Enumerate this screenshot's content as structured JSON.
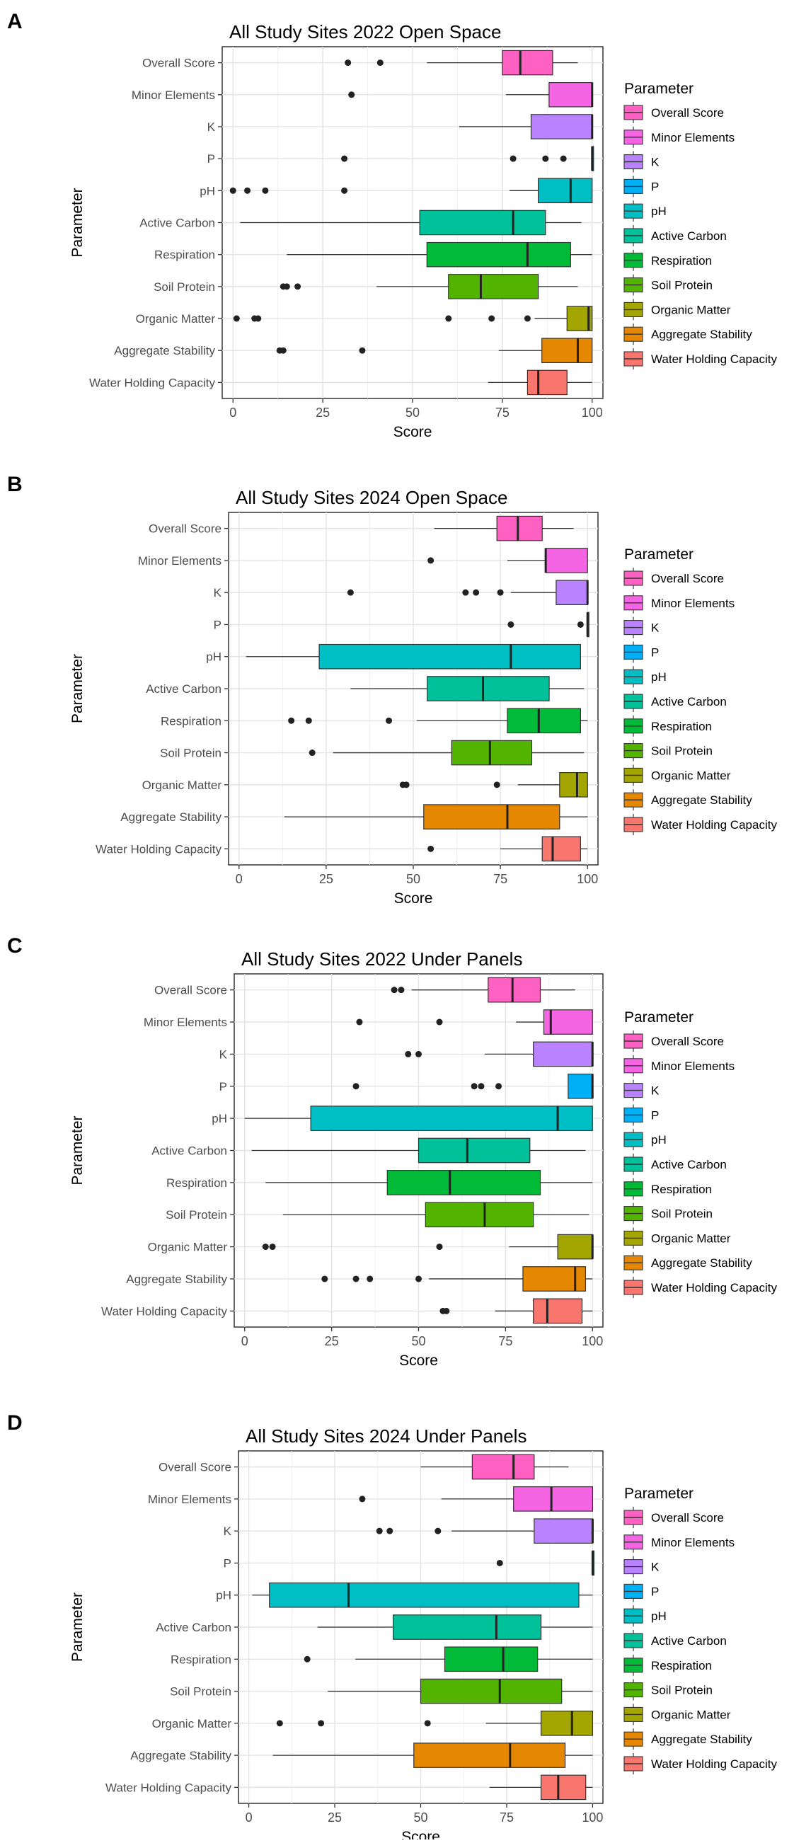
{
  "figure": {
    "panels": [
      "A",
      "B",
      "C",
      "D"
    ]
  },
  "legend": {
    "title": "Parameter"
  },
  "chart_data": [
    {
      "type": "boxplot",
      "panel_label": "A",
      "title": "All Study Sites 2022 Open Space",
      "xlabel": "Score",
      "ylabel": "Parameter",
      "xlim": [
        -3,
        103
      ],
      "xticks": [
        0,
        25,
        50,
        75,
        100
      ],
      "grid": true,
      "legend_position": "right",
      "series": [
        {
          "name": "Overall Score",
          "color": "#FF61C3",
          "whisker_low": 54,
          "q1": 75,
          "median": 80,
          "q3": 89,
          "whisker_high": 96,
          "outliers": [
            32,
            41
          ]
        },
        {
          "name": "Minor Elements",
          "color": "#F564E3",
          "whisker_low": 76,
          "q1": 88,
          "median": 100,
          "q3": 100,
          "whisker_high": 100,
          "outliers": [
            33
          ]
        },
        {
          "name": "K",
          "color": "#B983FF",
          "whisker_low": 63,
          "q1": 83,
          "median": 100,
          "q3": 100,
          "whisker_high": 100,
          "outliers": []
        },
        {
          "name": "P",
          "color": "#00B0F6",
          "whisker_low": 100,
          "q1": 100,
          "median": 100,
          "q3": 100,
          "whisker_high": 100,
          "outliers": [
            31,
            78,
            87,
            92
          ]
        },
        {
          "name": "pH",
          "color": "#00BFC4",
          "whisker_low": 77,
          "q1": 85,
          "median": 94,
          "q3": 100,
          "whisker_high": 100,
          "outliers": [
            0,
            4,
            9,
            31
          ]
        },
        {
          "name": "Active Carbon",
          "color": "#00C19A",
          "whisker_low": 2,
          "q1": 52,
          "median": 78,
          "q3": 87,
          "whisker_high": 97,
          "outliers": []
        },
        {
          "name": "Respiration",
          "color": "#00BA38",
          "whisker_low": 15,
          "q1": 54,
          "median": 82,
          "q3": 94,
          "whisker_high": 100,
          "outliers": []
        },
        {
          "name": "Soil Protein",
          "color": "#53B400",
          "whisker_low": 40,
          "q1": 60,
          "median": 69,
          "q3": 85,
          "whisker_high": 96,
          "outliers": [
            14,
            15,
            18
          ]
        },
        {
          "name": "Organic Matter",
          "color": "#A3A500",
          "whisker_low": 84,
          "q1": 93,
          "median": 99,
          "q3": 100,
          "whisker_high": 100,
          "outliers": [
            1,
            6,
            7,
            60,
            72,
            82
          ]
        },
        {
          "name": "Aggregate Stability",
          "color": "#E58700",
          "whisker_low": 74,
          "q1": 86,
          "median": 96,
          "q3": 100,
          "whisker_high": 100,
          "outliers": [
            13,
            14,
            36
          ]
        },
        {
          "name": "Water Holding Capacity",
          "color": "#F8766D",
          "whisker_low": 71,
          "q1": 82,
          "median": 85,
          "q3": 93,
          "whisker_high": 100,
          "outliers": []
        }
      ]
    },
    {
      "type": "boxplot",
      "panel_label": "B",
      "title": "All Study Sites 2024 Open Space",
      "xlabel": "Score",
      "ylabel": "Parameter",
      "xlim": [
        -3,
        103
      ],
      "xticks": [
        0,
        25,
        50,
        75,
        100
      ],
      "grid": true,
      "legend_position": "right",
      "series": [
        {
          "name": "Overall Score",
          "color": "#FF61C3",
          "whisker_low": 56,
          "q1": 74,
          "median": 80,
          "q3": 87,
          "whisker_high": 96,
          "outliers": []
        },
        {
          "name": "Minor Elements",
          "color": "#F564E3",
          "whisker_low": 77,
          "q1": 88,
          "median": 88,
          "q3": 100,
          "whisker_high": 100,
          "outliers": [
            55
          ]
        },
        {
          "name": "K",
          "color": "#B983FF",
          "whisker_low": 78,
          "q1": 91,
          "median": 100,
          "q3": 100,
          "whisker_high": 100,
          "outliers": [
            32,
            65,
            68,
            75
          ]
        },
        {
          "name": "P",
          "color": "#00B0F6",
          "whisker_low": 100,
          "q1": 100,
          "median": 100,
          "q3": 100,
          "whisker_high": 100,
          "outliers": [
            78,
            98
          ]
        },
        {
          "name": "pH",
          "color": "#00BFC4",
          "whisker_low": 2,
          "q1": 23,
          "median": 78,
          "q3": 98,
          "whisker_high": 98,
          "outliers": []
        },
        {
          "name": "Active Carbon",
          "color": "#00C19A",
          "whisker_low": 32,
          "q1": 54,
          "median": 70,
          "q3": 89,
          "whisker_high": 99,
          "outliers": []
        },
        {
          "name": "Respiration",
          "color": "#00BA38",
          "whisker_low": 51,
          "q1": 77,
          "median": 86,
          "q3": 98,
          "whisker_high": 100,
          "outliers": [
            15,
            20,
            43
          ]
        },
        {
          "name": "Soil Protein",
          "color": "#53B400",
          "whisker_low": 27,
          "q1": 61,
          "median": 72,
          "q3": 84,
          "whisker_high": 99,
          "outliers": [
            21
          ]
        },
        {
          "name": "Organic Matter",
          "color": "#A3A500",
          "whisker_low": 80,
          "q1": 92,
          "median": 97,
          "q3": 100,
          "whisker_high": 100,
          "outliers": [
            47,
            48,
            74
          ]
        },
        {
          "name": "Aggregate Stability",
          "color": "#E58700",
          "whisker_low": 13,
          "q1": 53,
          "median": 77,
          "q3": 92,
          "whisker_high": 100,
          "outliers": []
        },
        {
          "name": "Water Holding Capacity",
          "color": "#F8766D",
          "whisker_low": 75,
          "q1": 87,
          "median": 90,
          "q3": 98,
          "whisker_high": 100,
          "outliers": [
            55
          ]
        }
      ]
    },
    {
      "type": "boxplot",
      "panel_label": "C",
      "title": "All Study Sites 2022 Under Panels",
      "xlabel": "Score",
      "ylabel": "Parameter",
      "xlim": [
        -3,
        103
      ],
      "xticks": [
        0,
        25,
        50,
        75,
        100
      ],
      "grid": true,
      "legend_position": "right",
      "series": [
        {
          "name": "Overall Score",
          "color": "#FF61C3",
          "whisker_low": 48,
          "q1": 70,
          "median": 77,
          "q3": 85,
          "whisker_high": 95,
          "outliers": [
            43,
            45
          ]
        },
        {
          "name": "Minor Elements",
          "color": "#F564E3",
          "whisker_low": 78,
          "q1": 86,
          "median": 88,
          "q3": 100,
          "whisker_high": 100,
          "outliers": [
            33,
            56
          ]
        },
        {
          "name": "K",
          "color": "#B983FF",
          "whisker_low": 69,
          "q1": 83,
          "median": 100,
          "q3": 100,
          "whisker_high": 100,
          "outliers": [
            47,
            50
          ]
        },
        {
          "name": "P",
          "color": "#00B0F6",
          "whisker_low": 93,
          "q1": 93,
          "median": 100,
          "q3": 100,
          "whisker_high": 100,
          "outliers": [
            32,
            66,
            68,
            73
          ]
        },
        {
          "name": "pH",
          "color": "#00BFC4",
          "whisker_low": 0,
          "q1": 19,
          "median": 90,
          "q3": 100,
          "whisker_high": 100,
          "outliers": []
        },
        {
          "name": "Active Carbon",
          "color": "#00C19A",
          "whisker_low": 2,
          "q1": 50,
          "median": 64,
          "q3": 82,
          "whisker_high": 98,
          "outliers": []
        },
        {
          "name": "Respiration",
          "color": "#00BA38",
          "whisker_low": 6,
          "q1": 41,
          "median": 59,
          "q3": 85,
          "whisker_high": 100,
          "outliers": []
        },
        {
          "name": "Soil Protein",
          "color": "#53B400",
          "whisker_low": 11,
          "q1": 52,
          "median": 69,
          "q3": 83,
          "whisker_high": 99,
          "outliers": []
        },
        {
          "name": "Organic Matter",
          "color": "#A3A500",
          "whisker_low": 76,
          "q1": 90,
          "median": 100,
          "q3": 100,
          "whisker_high": 100,
          "outliers": [
            6,
            8,
            56
          ]
        },
        {
          "name": "Aggregate Stability",
          "color": "#E58700",
          "whisker_low": 53,
          "q1": 80,
          "median": 95,
          "q3": 98,
          "whisker_high": 100,
          "outliers": [
            23,
            32,
            36,
            50
          ]
        },
        {
          "name": "Water Holding Capacity",
          "color": "#F8766D",
          "whisker_low": 72,
          "q1": 83,
          "median": 87,
          "q3": 97,
          "whisker_high": 100,
          "outliers": [
            57,
            58
          ]
        }
      ]
    },
    {
      "type": "boxplot",
      "panel_label": "D",
      "title": "All Study Sites 2024 Under Panels",
      "xlabel": "Score",
      "ylabel": "Parameter",
      "xlim": [
        -3,
        103
      ],
      "xticks": [
        0,
        25,
        50,
        75,
        100
      ],
      "grid": true,
      "legend_position": "right",
      "series": [
        {
          "name": "Overall Score",
          "color": "#FF61C3",
          "whisker_low": 50,
          "q1": 65,
          "median": 77,
          "q3": 83,
          "whisker_high": 93,
          "outliers": []
        },
        {
          "name": "Minor Elements",
          "color": "#F564E3",
          "whisker_low": 56,
          "q1": 77,
          "median": 88,
          "q3": 100,
          "whisker_high": 100,
          "outliers": [
            33
          ]
        },
        {
          "name": "K",
          "color": "#B983FF",
          "whisker_low": 59,
          "q1": 83,
          "median": 100,
          "q3": 100,
          "whisker_high": 100,
          "outliers": [
            38,
            41,
            55
          ]
        },
        {
          "name": "P",
          "color": "#00B0F6",
          "whisker_low": 100,
          "q1": 100,
          "median": 100,
          "q3": 100,
          "whisker_high": 100,
          "outliers": [
            73
          ]
        },
        {
          "name": "pH",
          "color": "#00BFC4",
          "whisker_low": 1,
          "q1": 6,
          "median": 29,
          "q3": 96,
          "whisker_high": 100,
          "outliers": []
        },
        {
          "name": "Active Carbon",
          "color": "#00C19A",
          "whisker_low": 20,
          "q1": 42,
          "median": 72,
          "q3": 85,
          "whisker_high": 100,
          "outliers": []
        },
        {
          "name": "Respiration",
          "color": "#00BA38",
          "whisker_low": 31,
          "q1": 57,
          "median": 74,
          "q3": 84,
          "whisker_high": 100,
          "outliers": [
            17
          ]
        },
        {
          "name": "Soil Protein",
          "color": "#53B400",
          "whisker_low": 23,
          "q1": 50,
          "median": 73,
          "q3": 91,
          "whisker_high": 100,
          "outliers": []
        },
        {
          "name": "Organic Matter",
          "color": "#A3A500",
          "whisker_low": 69,
          "q1": 85,
          "median": 94,
          "q3": 100,
          "whisker_high": 100,
          "outliers": [
            9,
            21,
            52
          ]
        },
        {
          "name": "Aggregate Stability",
          "color": "#E58700",
          "whisker_low": 7,
          "q1": 48,
          "median": 76,
          "q3": 92,
          "whisker_high": 100,
          "outliers": []
        },
        {
          "name": "Water Holding Capacity",
          "color": "#F8766D",
          "whisker_low": 70,
          "q1": 85,
          "median": 90,
          "q3": 98,
          "whisker_high": 100,
          "outliers": []
        }
      ]
    }
  ]
}
